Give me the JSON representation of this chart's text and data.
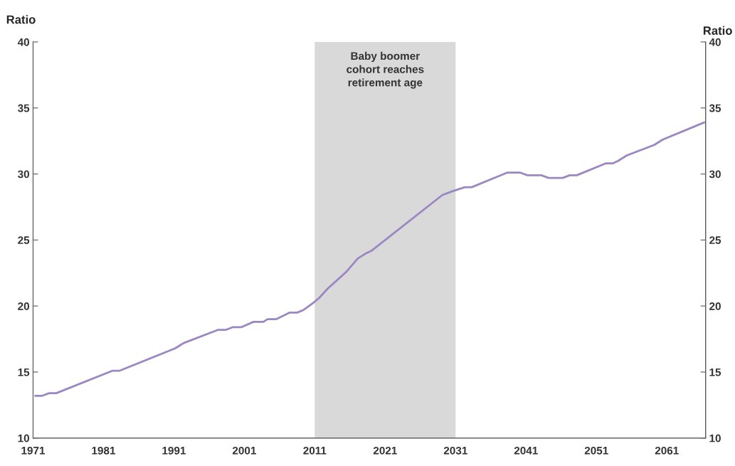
{
  "chart_data": {
    "type": "line",
    "ylabel": "Ratio",
    "y2label": "Ratio",
    "x": [
      1971.3,
      1972.3,
      1973.3,
      1974.3,
      1982.3,
      1983.3,
      1991.2,
      1992.4,
      1997.3,
      1998.4,
      1999.4,
      2000.6,
      2002.3,
      2003.7,
      2004.3,
      2005.5,
      2007.4,
      2008.5,
      2009.4,
      2010.7,
      2011.6,
      2012.8,
      2015.5,
      2017.1,
      2018.3,
      2019.1,
      2029.1,
      2030.6,
      2032.3,
      2033.3,
      2038.3,
      2040.2,
      2041.2,
      2043.2,
      2044.2,
      2046.2,
      2047.2,
      2048.2,
      2052.3,
      2053.3,
      2054.1,
      2055.3,
      2059.2,
      2060.4,
      2066.3
    ],
    "series": [
      {
        "color": "#9b87c1",
        "values": [
          13.2,
          13.2,
          13.4,
          13.4,
          15.1,
          15.1,
          16.8,
          17.2,
          18.2,
          18.2,
          18.4,
          18.4,
          18.8,
          18.8,
          19.0,
          19.0,
          19.5,
          19.5,
          19.7,
          20.2,
          20.6,
          21.3,
          22.6,
          23.6,
          24.0,
          24.2,
          28.4,
          28.7,
          29.0,
          29.0,
          30.1,
          30.1,
          29.9,
          29.9,
          29.7,
          29.7,
          29.9,
          29.9,
          30.8,
          30.8,
          31.0,
          31.4,
          32.2,
          32.6,
          33.9
        ]
      }
    ],
    "xlim": [
      1971,
      2066.5
    ],
    "xticks": [
      1971,
      1981,
      1991,
      2001,
      2011,
      2021,
      2031,
      2041,
      2051,
      2061
    ],
    "ylim": [
      10,
      40
    ],
    "yticks": [
      10,
      15,
      20,
      25,
      30,
      35,
      40
    ],
    "y2lim": [
      10,
      40
    ],
    "y2ticks": [
      10,
      15,
      20,
      25,
      30,
      35,
      40
    ],
    "bands": [
      {
        "axis": "x",
        "from": 2011,
        "to": 2031,
        "label": "Baby boomer\ncohort reaches\nretirement age",
        "color": "#d9d9d9"
      }
    ],
    "grid": false,
    "legend": false,
    "marker": "none",
    "line_style": "solid"
  }
}
